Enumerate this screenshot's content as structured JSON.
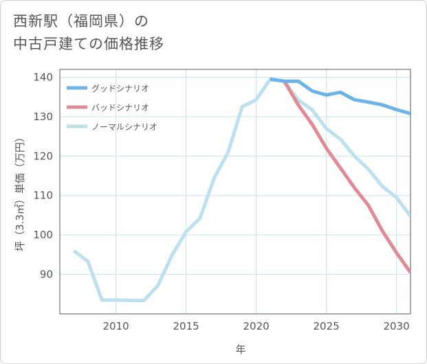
{
  "page": {
    "title_line1": "西新駅（福岡県）の",
    "title_line2": "中古戸建ての価格推移"
  },
  "chart_data": {
    "type": "line",
    "title": "西新駅（福岡県）の 中古戸建ての価格推移",
    "xlabel": "年",
    "ylabel": "坪（3.3㎡）単価（万円）",
    "xlim": [
      2006,
      2031
    ],
    "ylim": [
      80,
      142
    ],
    "x_ticks": [
      2010,
      2015,
      2020,
      2025,
      2030
    ],
    "y_ticks": [
      90,
      100,
      110,
      120,
      130,
      140
    ],
    "grid": true,
    "legend_position": "top-left",
    "series": [
      {
        "name": "グッドシナリオ",
        "color": "#6cb4e8",
        "x": [
          2021,
          2022,
          2023,
          2024,
          2025,
          2026,
          2027,
          2028,
          2029,
          2030,
          2031
        ],
        "y": [
          139.5,
          139,
          139,
          136.5,
          135.5,
          136.2,
          134.3,
          133.7,
          133,
          131.8,
          130.8
        ]
      },
      {
        "name": "バッドシナリオ",
        "color": "#de8b95",
        "x": [
          2021,
          2022,
          2023,
          2024,
          2025,
          2026,
          2027,
          2028,
          2029,
          2030,
          2031
        ],
        "y": [
          139.5,
          139,
          133,
          128,
          122,
          117,
          112,
          107.5,
          101,
          95.5,
          90.5
        ]
      },
      {
        "name": "ノーマルシナリオ",
        "color": "#bde0ee",
        "x": [
          2007,
          2008,
          2009,
          2010,
          2011,
          2012,
          2013,
          2014,
          2015,
          2016,
          2017,
          2018,
          2019,
          2020,
          2021,
          2022,
          2023,
          2024,
          2025,
          2026,
          2027,
          2028,
          2029,
          2030,
          2031
        ],
        "y": [
          96,
          93.3,
          83.5,
          83.5,
          83.4,
          83.4,
          87.2,
          94.9,
          100.8,
          104.3,
          114.4,
          121,
          132.5,
          134.3,
          139.5,
          139,
          134.2,
          131.7,
          127,
          124.3,
          120,
          116.7,
          112.3,
          109.5,
          104.8
        ]
      }
    ]
  }
}
